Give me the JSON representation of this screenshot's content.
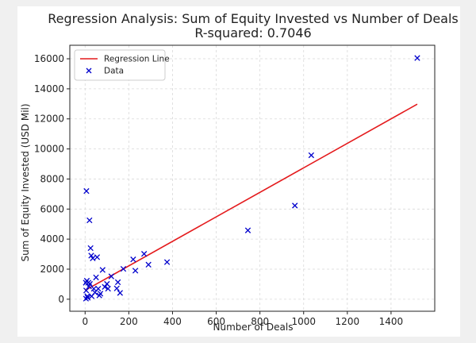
{
  "chart_data": {
    "type": "scatter",
    "title": "Regression Analysis: Sum of Equity Invested vs Number of Deals",
    "subtitle": "R-squared: 0.7046",
    "xlabel": "Number of Deals",
    "ylabel": "Sum of Equity Invested (USD Mil)",
    "xlim": [
      -70,
      1600
    ],
    "ylim": [
      -800,
      16900
    ],
    "xticks": [
      0,
      200,
      400,
      600,
      800,
      1000,
      1200,
      1400
    ],
    "yticks": [
      0,
      2000,
      4000,
      6000,
      8000,
      10000,
      12000,
      14000,
      16000
    ],
    "grid": true,
    "legend_position": "top-left",
    "colors": {
      "regression": "#e41a1c",
      "data": "#0000cc"
    },
    "series": [
      {
        "name": "Regression Line",
        "type": "line",
        "x": [
          0,
          1520
        ],
        "y": [
          590,
          12980
        ]
      },
      {
        "name": "Data",
        "type": "scatter",
        "marker": "x",
        "points": [
          [
            1520,
            16050
          ],
          [
            1035,
            9580
          ],
          [
            960,
            6230
          ],
          [
            745,
            4580
          ],
          [
            375,
            2470
          ],
          [
            290,
            2300
          ],
          [
            270,
            3020
          ],
          [
            230,
            1900
          ],
          [
            220,
            2650
          ],
          [
            175,
            2020
          ],
          [
            160,
            420
          ],
          [
            150,
            1130
          ],
          [
            145,
            720
          ],
          [
            120,
            1520
          ],
          [
            105,
            700
          ],
          [
            100,
            1020
          ],
          [
            90,
            820
          ],
          [
            80,
            1950
          ],
          [
            70,
            370
          ],
          [
            65,
            250
          ],
          [
            60,
            700
          ],
          [
            55,
            2800
          ],
          [
            50,
            1450
          ],
          [
            45,
            450
          ],
          [
            40,
            700
          ],
          [
            35,
            2720
          ],
          [
            30,
            200
          ],
          [
            28,
            2900
          ],
          [
            25,
            3400
          ],
          [
            22,
            1020
          ],
          [
            20,
            5250
          ],
          [
            18,
            850
          ],
          [
            15,
            1100
          ],
          [
            12,
            100
          ],
          [
            10,
            200
          ],
          [
            8,
            1230
          ],
          [
            6,
            7200
          ],
          [
            5,
            580
          ],
          [
            4,
            40
          ],
          [
            3,
            1100
          ]
        ]
      }
    ]
  }
}
